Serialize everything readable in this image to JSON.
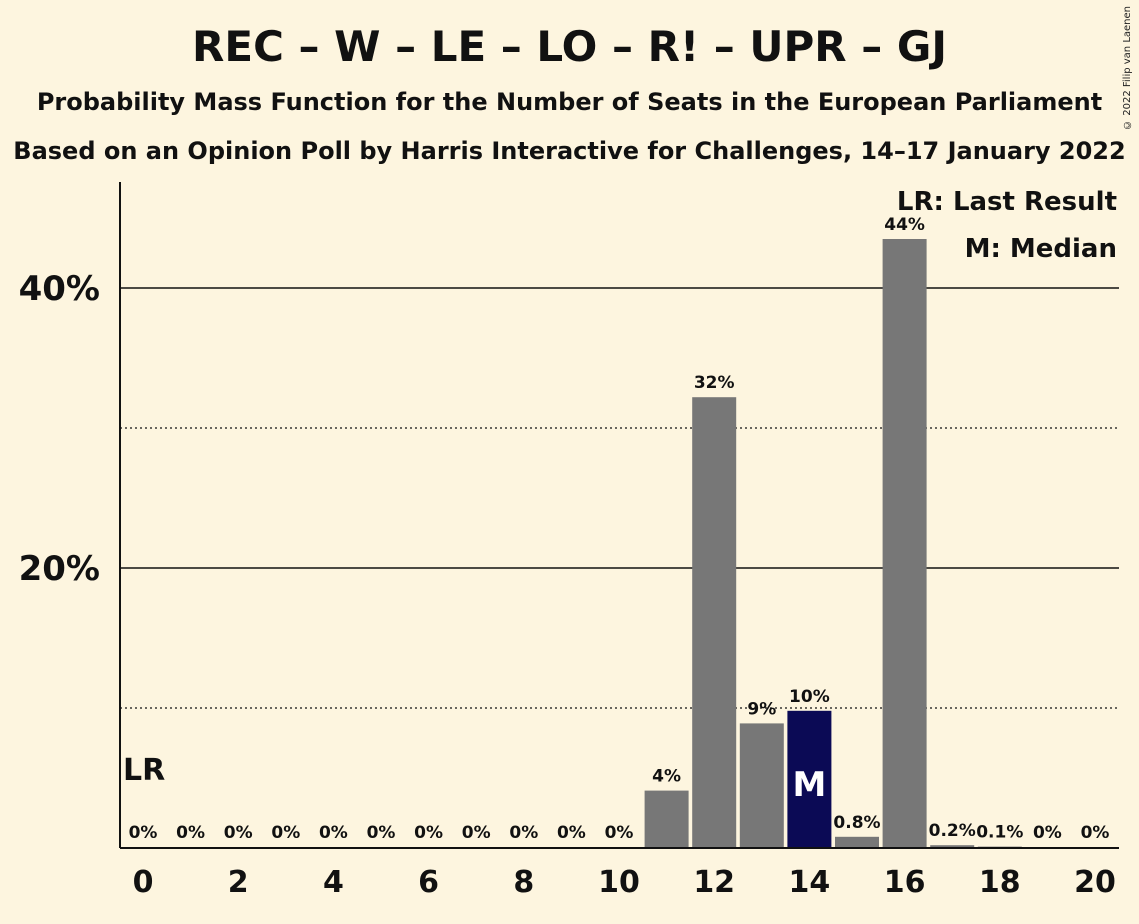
{
  "header": {
    "title": "REC – W – LE – LO – R! – UPR – GJ",
    "subtitle1": "Probability Mass Function for the Number of Seats in the European Parliament",
    "subtitle2": "Based on an Opinion Poll by Harris Interactive for Challenges, 14–17 January 2022",
    "copyright": "© 2022 Filip van Laenen"
  },
  "legend": {
    "last_result": "LR: Last Result",
    "median": "M: Median"
  },
  "markers": {
    "last_result_label": "LR",
    "median_label": "M"
  },
  "colors": {
    "background": "#fdf5df",
    "bar": "#777777",
    "median_bar": "#0b0a55"
  },
  "chart_data": {
    "type": "bar",
    "x": [
      0,
      1,
      2,
      3,
      4,
      5,
      6,
      7,
      8,
      9,
      10,
      11,
      12,
      13,
      14,
      15,
      16,
      17,
      18,
      19,
      20
    ],
    "values": [
      0,
      0,
      0,
      0,
      0,
      0,
      0,
      0,
      0,
      0,
      0,
      4.1,
      32.2,
      8.9,
      9.8,
      0.8,
      43.5,
      0.2,
      0.1,
      0,
      0
    ],
    "labels": [
      "0%",
      "0%",
      "0%",
      "0%",
      "0%",
      "0%",
      "0%",
      "0%",
      "0%",
      "0%",
      "0%",
      "4%",
      "32%",
      "9%",
      "10%",
      "0.8%",
      "44%",
      "0.2%",
      "0.1%",
      "0%",
      "0%"
    ],
    "xticks": [
      "0",
      "2",
      "4",
      "6",
      "8",
      "10",
      "12",
      "14",
      "16",
      "18",
      "20"
    ],
    "yticks": [
      "20%",
      "40%"
    ],
    "ylim": [
      0,
      47.5
    ],
    "gridlines": {
      "solid": [
        20,
        40
      ],
      "dotted": [
        10,
        30
      ]
    },
    "last_result_seat": 0,
    "median_seat": 14,
    "legend_position": "top-right"
  }
}
